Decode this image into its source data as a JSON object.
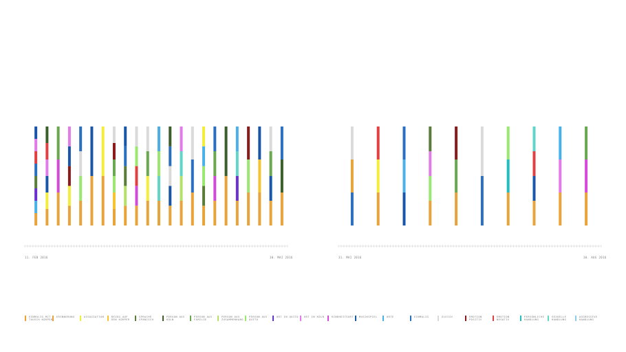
{
  "chart_data": [
    {
      "type": "bar",
      "subtype": "stacked-category-strips",
      "x_start_label": "11. Feb 2016",
      "x_end_label": "30. Mai 2016",
      "grid": false,
      "series": [
        {
          "stack": [
            "Erinnerung",
            "Orte",
            "Ort in Quito",
            "Sprache Spanisch",
            "Einmalig",
            "Emotion negativ",
            "Ort in Köln",
            "Musik"
          ]
        },
        {
          "stack": [
            "Erinnerung",
            "Assoziation",
            "Musik",
            "Ort in Köln",
            "Emotion negativ",
            "Person aus Köln"
          ]
        },
        {
          "stack": [
            "Erinnerung",
            "Kindheitsort",
            "Person aus Familie"
          ]
        },
        {
          "stack": [
            "Erinnerung",
            "Assoziation",
            "Emotion positiv",
            "Musik",
            "Ort in Köln"
          ]
        },
        {
          "stack": [
            "Erinnerung",
            "Person aus Quito",
            "Gleich",
            "Einmalig"
          ]
        },
        {
          "stack": [
            "Erinnerung",
            "Musik"
          ]
        },
        {
          "stack": [
            "Erinnerung",
            "Assoziation"
          ]
        },
        {
          "stack": [
            "Erinnerung",
            "Bezug auf den Körper",
            "Person aus Quito",
            "Person aus Familie",
            "Emotion positiv",
            "Gleich"
          ]
        },
        {
          "stack": [
            "Erinnerung",
            "Person aus Zusammenhang mit Dingen",
            "Sprache Spanisch",
            "Einmalig",
            "Musik"
          ]
        },
        {
          "stack": [
            "Erinnerung",
            "Kindheitsort",
            "Emotion negativ",
            "Person aus Quito",
            "Gleich"
          ]
        },
        {
          "stack": [
            "Erinnerung",
            "Assoziation",
            "Person aus Familie",
            "Gleich"
          ]
        },
        {
          "stack": [
            "Erinnerung",
            "Sexuelle Handlung",
            "Person aus Quito",
            "Orte"
          ]
        },
        {
          "stack": [
            "Erinnerung",
            "Musik",
            "Gleich",
            "Einmalig",
            "Person aus Köln"
          ]
        },
        {
          "stack": [
            "Erinnerung",
            "Person aus Zusammenhang mit Dingen",
            "Sexuelle Handlung",
            "Ort in Köln"
          ]
        },
        {
          "stack": [
            "Erinnerung",
            "Einmalig",
            "Gleich"
          ]
        },
        {
          "stack": [
            "Erinnerung",
            "Sprache Spanisch",
            "Person aus Quito",
            "Orte",
            "Assoziation"
          ]
        },
        {
          "stack": [
            "Erinnerung",
            "Kindheitsort",
            "Person aus Familie",
            "Einmalig"
          ]
        },
        {
          "stack": [
            "Erinnerung",
            "Person aus Köln"
          ]
        },
        {
          "stack": [
            "Erinnerung",
            "Ort in Quito",
            "Sexuelle Handlung",
            "Orte"
          ]
        },
        {
          "stack": [
            "Erinnerung",
            "Person aus Quito",
            "Emotion positiv"
          ]
        },
        {
          "stack": [
            "Erinnerung",
            "Bezug auf den Körper",
            "Musik"
          ]
        },
        {
          "stack": [
            "Erinnerung",
            "Musik",
            "Person aus Familie",
            "Gleich"
          ]
        },
        {
          "stack": [
            "Erinnerung",
            "Person aus Köln",
            "Einmalig"
          ]
        }
      ]
    },
    {
      "type": "bar",
      "subtype": "stacked-category-strips",
      "x_start_label": "31. Mai 2016",
      "x_end_label": "30. Aug 2016",
      "grid": false,
      "series": [
        {
          "stack": [
            "Einmalig",
            "Erinnerung",
            "Gleich"
          ]
        },
        {
          "stack": [
            "Erinnerung",
            "Assoziation",
            "Emotion negativ"
          ]
        },
        {
          "stack": [
            "Musik",
            "Orte",
            "Einmalig"
          ]
        },
        {
          "stack": [
            "Erinnerung",
            "Person aus Quito",
            "Ort in Köln",
            "Sprache Spanisch"
          ]
        },
        {
          "stack": [
            "Erinnerung",
            "Person aus Familie",
            "Emotion positiv"
          ]
        },
        {
          "stack": [
            "Einmalig",
            "Gleich"
          ]
        },
        {
          "stack": [
            "Erinnerung",
            "Persönliche Handlung",
            "Person aus Quito"
          ]
        },
        {
          "stack": [
            "Erinnerung",
            "Musik",
            "Emotion negativ",
            "Sexuelle Handlung"
          ]
        },
        {
          "stack": [
            "Erinnerung",
            "Ort in Köln",
            "Orte"
          ]
        },
        {
          "stack": [
            "Erinnerung",
            "Kindheitsort",
            "Person aus Familie"
          ]
        }
      ]
    }
  ],
  "legend": [
    {
      "label": "Einmalig mit\nTausch Körper",
      "color": "#f0a030"
    },
    {
      "label": "Erinnerung",
      "color": "#e8a33a"
    },
    {
      "label": "Assoziation",
      "color": "#f2ee3a"
    },
    {
      "label": "Bezug auf\nden Körper",
      "color": "#f4c430"
    },
    {
      "label": "Sprache\nSpanisch",
      "color": "#5a7d3c"
    },
    {
      "label": "Person aus\nKöln",
      "color": "#3b5e2b"
    },
    {
      "label": "Person aus\nFamilie",
      "color": "#6aa84f"
    },
    {
      "label": "Person aus\nZusammenhang",
      "color": "#b5e06a"
    },
    {
      "label": "Person aus\nQuito",
      "color": "#9be870"
    },
    {
      "label": "Ort in Quito",
      "color": "#6a2fd0"
    },
    {
      "label": "Ort in Köln",
      "color": "#e07be8"
    },
    {
      "label": "Kindheitsort",
      "color": "#d24ad8"
    },
    {
      "label": "Musikspiel",
      "color": "#1a56a8"
    },
    {
      "label": "Orte",
      "color": "#4ab0e8"
    },
    {
      "label": "Einmalig",
      "color": "#2a6fc0"
    },
    {
      "label": "Gleich",
      "color": "#dadada"
    },
    {
      "label": "Emotion\nPositiv",
      "color": "#8b1a1a"
    },
    {
      "label": "Emotion\nNegativ",
      "color": "#e04040"
    },
    {
      "label": "Persönliche\nHandlung",
      "color": "#1fbfbf"
    },
    {
      "label": "Sexuelle\nHandlung",
      "color": "#5fd6c8"
    },
    {
      "label": "Aggressive\nHandlung",
      "color": "#8ec9e8"
    }
  ]
}
